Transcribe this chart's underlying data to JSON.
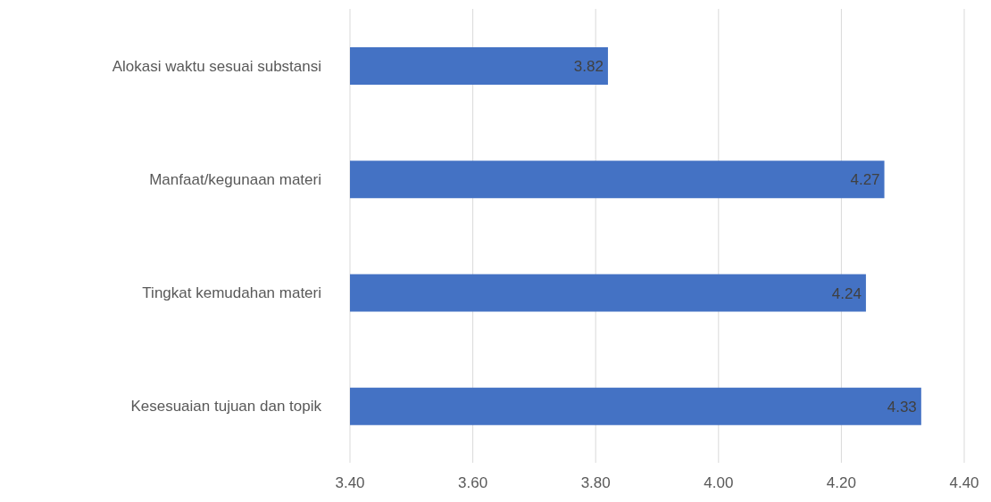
{
  "chart_data": {
    "type": "bar",
    "orientation": "horizontal",
    "categories": [
      "Alokasi waktu sesuai substansi",
      "Manfaat/kegunaan materi",
      "Tingkat kemudahan materi",
      "Kesesuaian tujuan dan topik"
    ],
    "values": [
      3.82,
      4.27,
      4.24,
      4.33
    ],
    "color": "#4472c4",
    "xlim": [
      3.4,
      4.4
    ],
    "xticks": [
      {
        "value": 3.4,
        "label": "3.40"
      },
      {
        "value": 3.6,
        "label": "3.60"
      },
      {
        "value": 3.8,
        "label": "3.80"
      },
      {
        "value": 4.0,
        "label": "4.00"
      },
      {
        "value": 4.2,
        "label": "4.20"
      },
      {
        "value": 4.4,
        "label": "4.40"
      }
    ],
    "grid": "x",
    "data_labels": true
  }
}
